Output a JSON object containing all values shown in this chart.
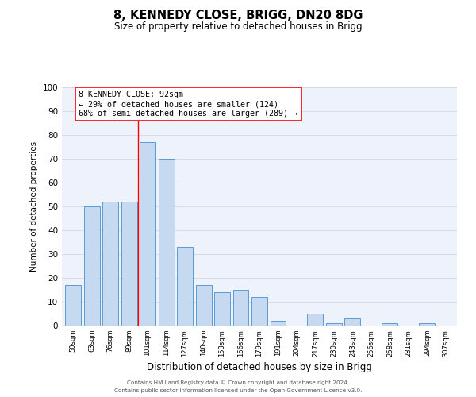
{
  "title": "8, KENNEDY CLOSE, BRIGG, DN20 8DG",
  "subtitle": "Size of property relative to detached houses in Brigg",
  "xlabel": "Distribution of detached houses by size in Brigg",
  "ylabel": "Number of detached properties",
  "bar_labels": [
    "50sqm",
    "63sqm",
    "76sqm",
    "89sqm",
    "101sqm",
    "114sqm",
    "127sqm",
    "140sqm",
    "153sqm",
    "166sqm",
    "179sqm",
    "191sqm",
    "204sqm",
    "217sqm",
    "230sqm",
    "243sqm",
    "256sqm",
    "268sqm",
    "281sqm",
    "294sqm",
    "307sqm"
  ],
  "bar_values": [
    17,
    50,
    52,
    52,
    77,
    70,
    33,
    17,
    14,
    15,
    12,
    2,
    0,
    5,
    1,
    3,
    0,
    1,
    0,
    1,
    0
  ],
  "bar_color": "#c5d9f1",
  "bar_edge_color": "#5b9bd5",
  "grid_color": "#d0d8e8",
  "background_color": "#eef2fa",
  "ylim": [
    0,
    100
  ],
  "red_line_x": 3.5,
  "annotation_box_text": "8 KENNEDY CLOSE: 92sqm\n← 29% of detached houses are smaller (124)\n68% of semi-detached houses are larger (289) →",
  "footer_line1": "Contains HM Land Registry data © Crown copyright and database right 2024.",
  "footer_line2": "Contains public sector information licensed under the Open Government Licence v3.0."
}
